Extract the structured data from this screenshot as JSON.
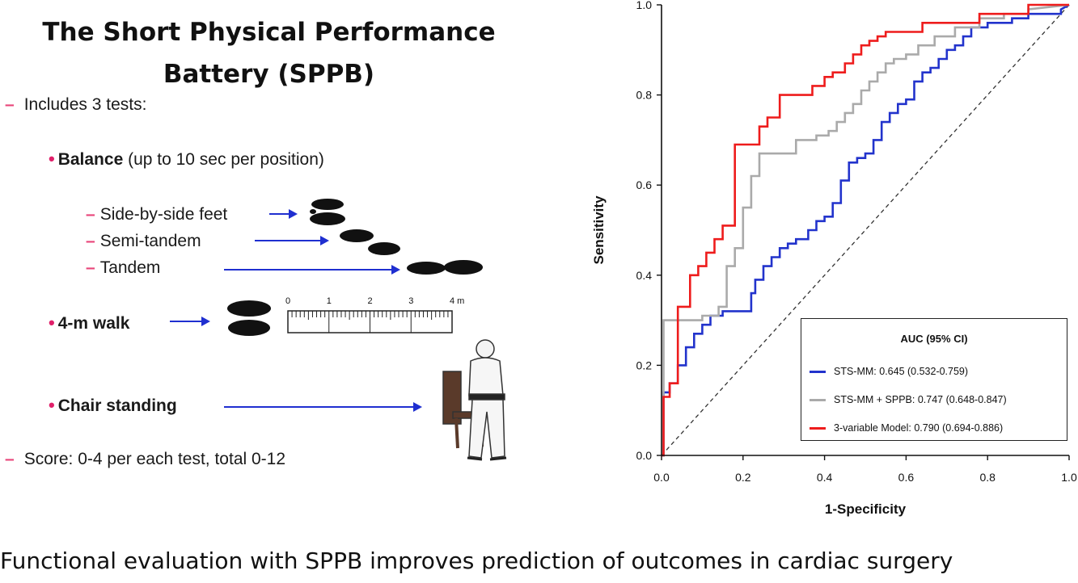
{
  "slide": {
    "title_line1": "The Short Physical Performance",
    "title_line2": "Battery (SPPB)",
    "includes": "Includes 3 tests:",
    "balance_bold": "Balance",
    "balance_rest": " (up to 10 sec per position)",
    "side_by_side": "Side-by-side feet",
    "semi_tandem": "Semi-tandem",
    "tandem": "Tandem",
    "walk": "4-m walk",
    "chair": "Chair standing",
    "score": "Score: 0-4 per each test, total 0-12",
    "ruler_labels": [
      "0",
      "1",
      "2",
      "3",
      "4 m"
    ],
    "caption": "Functional evaluation with SPPB improves prediction of outcomes in cardiac surgery"
  },
  "chart_data": {
    "type": "line",
    "title": "",
    "xlabel": "1-Specificity",
    "ylabel": "Sensitivity",
    "xlim": [
      0,
      1
    ],
    "ylim": [
      0,
      1
    ],
    "xticks": [
      "0.0",
      "0.2",
      "0.4",
      "0.6",
      "0.8",
      "1.0"
    ],
    "yticks": [
      "0.0",
      "0.2",
      "0.4",
      "0.6",
      "0.8",
      "1.0"
    ],
    "legend_title": "AUC (95% CI)",
    "legend_position": "bottom-right",
    "reference_line": {
      "name": "chance",
      "x": [
        0,
        1
      ],
      "y": [
        0,
        1
      ],
      "style": "dashed"
    },
    "series": [
      {
        "name": "STS-MM",
        "label": "STS-MM: 0.645 (0.532-0.759)",
        "color": "#2233cc",
        "x": [
          0,
          0.005,
          0.005,
          0.02,
          0.02,
          0.04,
          0.04,
          0.06,
          0.06,
          0.08,
          0.08,
          0.1,
          0.1,
          0.12,
          0.12,
          0.15,
          0.15,
          0.22,
          0.22,
          0.23,
          0.23,
          0.25,
          0.25,
          0.27,
          0.27,
          0.29,
          0.29,
          0.31,
          0.31,
          0.33,
          0.33,
          0.36,
          0.36,
          0.38,
          0.38,
          0.4,
          0.4,
          0.42,
          0.42,
          0.44,
          0.44,
          0.46,
          0.46,
          0.48,
          0.48,
          0.5,
          0.5,
          0.52,
          0.52,
          0.54,
          0.54,
          0.56,
          0.56,
          0.58,
          0.58,
          0.6,
          0.6,
          0.62,
          0.62,
          0.64,
          0.64,
          0.66,
          0.66,
          0.68,
          0.68,
          0.7,
          0.7,
          0.72,
          0.72,
          0.74,
          0.74,
          0.76,
          0.76,
          0.8,
          0.8,
          0.86,
          0.86,
          0.9,
          0.9,
          0.95,
          0.95,
          0.98,
          0.98,
          1.0
        ],
        "y": [
          0,
          0,
          0.14,
          0.14,
          0.16,
          0.16,
          0.2,
          0.2,
          0.24,
          0.24,
          0.27,
          0.27,
          0.29,
          0.29,
          0.31,
          0.31,
          0.32,
          0.32,
          0.36,
          0.36,
          0.39,
          0.39,
          0.42,
          0.42,
          0.44,
          0.44,
          0.46,
          0.46,
          0.47,
          0.47,
          0.48,
          0.48,
          0.5,
          0.5,
          0.52,
          0.52,
          0.53,
          0.53,
          0.56,
          0.56,
          0.61,
          0.61,
          0.65,
          0.65,
          0.66,
          0.66,
          0.67,
          0.67,
          0.7,
          0.7,
          0.74,
          0.74,
          0.76,
          0.76,
          0.78,
          0.78,
          0.79,
          0.79,
          0.83,
          0.83,
          0.85,
          0.85,
          0.86,
          0.86,
          0.88,
          0.88,
          0.9,
          0.9,
          0.91,
          0.91,
          0.93,
          0.93,
          0.95,
          0.95,
          0.96,
          0.96,
          0.97,
          0.97,
          0.98,
          0.98,
          0.98,
          0.98,
          0.99,
          1.0
        ]
      },
      {
        "name": "STS-MM + SPPB",
        "label": "STS-MM + SPPB: 0.747 (0.648-0.847)",
        "color": "#aaaaaa",
        "x": [
          0,
          0.005,
          0.005,
          0.1,
          0.1,
          0.14,
          0.14,
          0.16,
          0.16,
          0.18,
          0.18,
          0.2,
          0.2,
          0.22,
          0.22,
          0.24,
          0.24,
          0.33,
          0.33,
          0.38,
          0.38,
          0.41,
          0.41,
          0.43,
          0.43,
          0.45,
          0.45,
          0.47,
          0.47,
          0.49,
          0.49,
          0.51,
          0.51,
          0.53,
          0.53,
          0.55,
          0.55,
          0.57,
          0.57,
          0.6,
          0.6,
          0.63,
          0.63,
          0.67,
          0.67,
          0.72,
          0.72,
          0.78,
          0.78,
          0.84,
          0.84,
          0.9,
          0.9,
          1.0
        ],
        "y": [
          0,
          0,
          0.3,
          0.3,
          0.31,
          0.31,
          0.33,
          0.33,
          0.42,
          0.42,
          0.46,
          0.46,
          0.55,
          0.55,
          0.62,
          0.62,
          0.67,
          0.67,
          0.7,
          0.7,
          0.71,
          0.71,
          0.72,
          0.72,
          0.74,
          0.74,
          0.76,
          0.76,
          0.78,
          0.78,
          0.81,
          0.81,
          0.83,
          0.83,
          0.85,
          0.85,
          0.87,
          0.87,
          0.88,
          0.88,
          0.89,
          0.89,
          0.91,
          0.91,
          0.93,
          0.93,
          0.95,
          0.95,
          0.97,
          0.97,
          0.98,
          0.98,
          0.99,
          1.0
        ]
      },
      {
        "name": "3-variable Model",
        "label": "3-variable Model: 0.790 (0.694-0.886)",
        "color": "#ee1c1c",
        "x": [
          0,
          0.005,
          0.005,
          0.02,
          0.02,
          0.04,
          0.04,
          0.07,
          0.07,
          0.09,
          0.09,
          0.11,
          0.11,
          0.13,
          0.13,
          0.15,
          0.15,
          0.18,
          0.18,
          0.24,
          0.24,
          0.26,
          0.26,
          0.29,
          0.29,
          0.37,
          0.37,
          0.4,
          0.4,
          0.42,
          0.42,
          0.45,
          0.45,
          0.47,
          0.47,
          0.49,
          0.49,
          0.51,
          0.51,
          0.53,
          0.53,
          0.55,
          0.55,
          0.64,
          0.64,
          0.78,
          0.78,
          0.9,
          0.9,
          1.0
        ],
        "y": [
          0,
          0,
          0.13,
          0.13,
          0.16,
          0.16,
          0.33,
          0.33,
          0.4,
          0.4,
          0.42,
          0.42,
          0.45,
          0.45,
          0.48,
          0.48,
          0.51,
          0.51,
          0.69,
          0.69,
          0.73,
          0.73,
          0.75,
          0.75,
          0.8,
          0.8,
          0.82,
          0.82,
          0.84,
          0.84,
          0.85,
          0.85,
          0.87,
          0.87,
          0.89,
          0.89,
          0.91,
          0.91,
          0.92,
          0.92,
          0.93,
          0.93,
          0.94,
          0.94,
          0.96,
          0.96,
          0.98,
          0.98,
          1.0,
          1.0
        ]
      }
    ]
  }
}
